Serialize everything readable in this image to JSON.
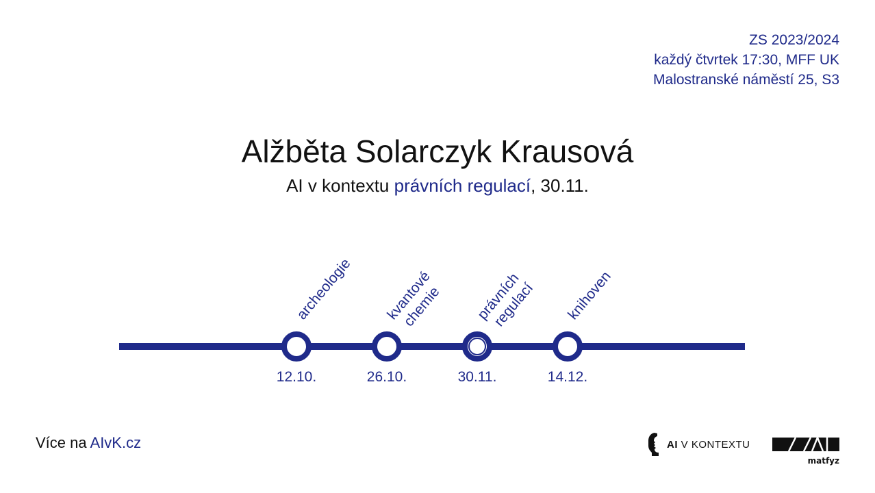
{
  "colors": {
    "accent": "#1f2a8a",
    "text": "#111111",
    "background": "#ffffff"
  },
  "info": {
    "semester": "ZS 2023/2024",
    "schedule": "každý čtvrtek 17:30, MFF UK",
    "location": "Malostranské náměstí 25, S3"
  },
  "speaker": {
    "name": "Alžběta Solarczyk Krausová"
  },
  "subtitle": {
    "prefix": "AI v kontextu ",
    "topic": "právních regulací",
    "suffix": ", 30.11."
  },
  "timeline": {
    "stops": [
      {
        "lines": [
          "archeologie"
        ],
        "date": "12.10.",
        "current": false
      },
      {
        "lines": [
          "kvantové",
          "chemie"
        ],
        "date": "26.10.",
        "current": false
      },
      {
        "lines": [
          "právních",
          "regulací"
        ],
        "date": "30.11.",
        "current": true
      },
      {
        "lines": [
          "knihoven"
        ],
        "date": "14.12.",
        "current": false
      }
    ]
  },
  "footer": {
    "more_prefix": "Více na ",
    "more_link": "AIvK.cz"
  },
  "logos": {
    "ai_bold": "AI",
    "ai_rest": " V KONTEXTU",
    "mff_name": "matfyz"
  }
}
